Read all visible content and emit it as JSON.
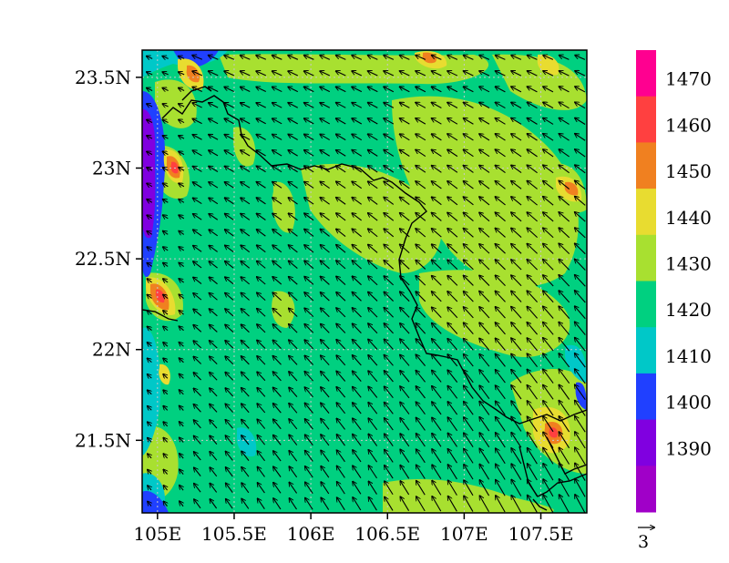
{
  "map": {
    "lat_ticks": [
      "23.5N",
      "23N",
      "22.5N",
      "22N",
      "21.5N"
    ],
    "lat_values": [
      23.5,
      23.0,
      22.5,
      22.0,
      21.5
    ],
    "lon_ticks": [
      "105E",
      "105.5E",
      "106E",
      "106.5E",
      "107E",
      "107.5E"
    ],
    "lon_values": [
      105.0,
      105.5,
      106.0,
      106.5,
      107.0,
      107.5
    ],
    "lon_range": [
      104.9,
      107.8
    ],
    "lat_range": [
      21.1,
      23.65
    ],
    "gridlines": "dotted",
    "field_base_color": "#00d080",
    "wind": {
      "direction": "from southeast",
      "u": -1.7,
      "v": 1.0
    },
    "vector_reference": {
      "label": "3",
      "value": 3
    }
  },
  "legend": {
    "tick_labels": [
      "1470",
      "1460",
      "1450",
      "1440",
      "1430",
      "1420",
      "1410",
      "1400",
      "1390"
    ],
    "bins_top_to_bottom": [
      {
        "range": ">1470",
        "color": "#ff0090"
      },
      {
        "range": "1460-1470",
        "color": "#ff4040"
      },
      {
        "range": "1450-1460",
        "color": "#f08020"
      },
      {
        "range": "1440-1450",
        "color": "#e8dc30"
      },
      {
        "range": "1430-1440",
        "color": "#a8e030"
      },
      {
        "range": "1420-1430",
        "color": "#00d080"
      },
      {
        "range": "1410-1420",
        "color": "#00c8c8"
      },
      {
        "range": "1400-1410",
        "color": "#2040ff"
      },
      {
        "range": "1390-1400",
        "color": "#8000e0"
      },
      {
        "range": "<1390",
        "color": "#a000c8"
      }
    ]
  }
}
